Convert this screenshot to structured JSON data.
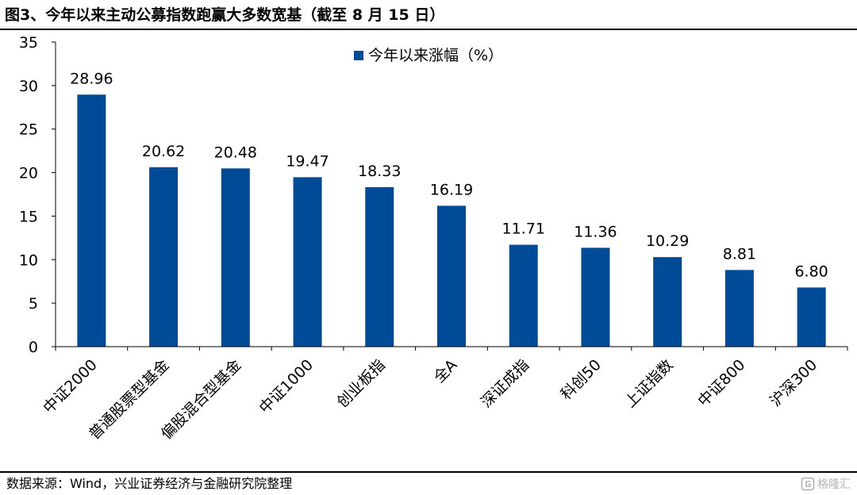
{
  "title": "图3、今年以来主动公募指数跑赢大多数宽基（截至 8 月 15 日）",
  "source": "数据来源：Wind，兴业证券经济与金融研究院整理",
  "watermark": "格隆汇",
  "colors": {
    "bar": "#004B97",
    "axis": "#000000",
    "text": "#000000"
  },
  "chart_data": {
    "type": "bar",
    "categories": [
      "中证2000",
      "普通股票型基金",
      "偏股混合型基金",
      "中证1000",
      "创业板指",
      "全A",
      "深证成指",
      "科创50",
      "上证指数",
      "中证800",
      "沪深300"
    ],
    "series": [
      {
        "name": "今年以来涨幅（%）",
        "values": [
          28.96,
          20.62,
          20.48,
          19.47,
          18.33,
          16.19,
          11.71,
          11.36,
          10.29,
          8.81,
          6.8
        ]
      }
    ],
    "data_labels": [
      "28.96",
      "20.62",
      "20.48",
      "19.47",
      "18.33",
      "16.19",
      "11.71",
      "11.36",
      "10.29",
      "8.81",
      "6.80"
    ],
    "yticks": [
      "0",
      "5",
      "10",
      "15",
      "20",
      "25",
      "30",
      "35"
    ],
    "ylim": [
      0,
      35
    ],
    "grid": false,
    "legend_position": "top-center",
    "xlabel": "",
    "ylabel": ""
  }
}
